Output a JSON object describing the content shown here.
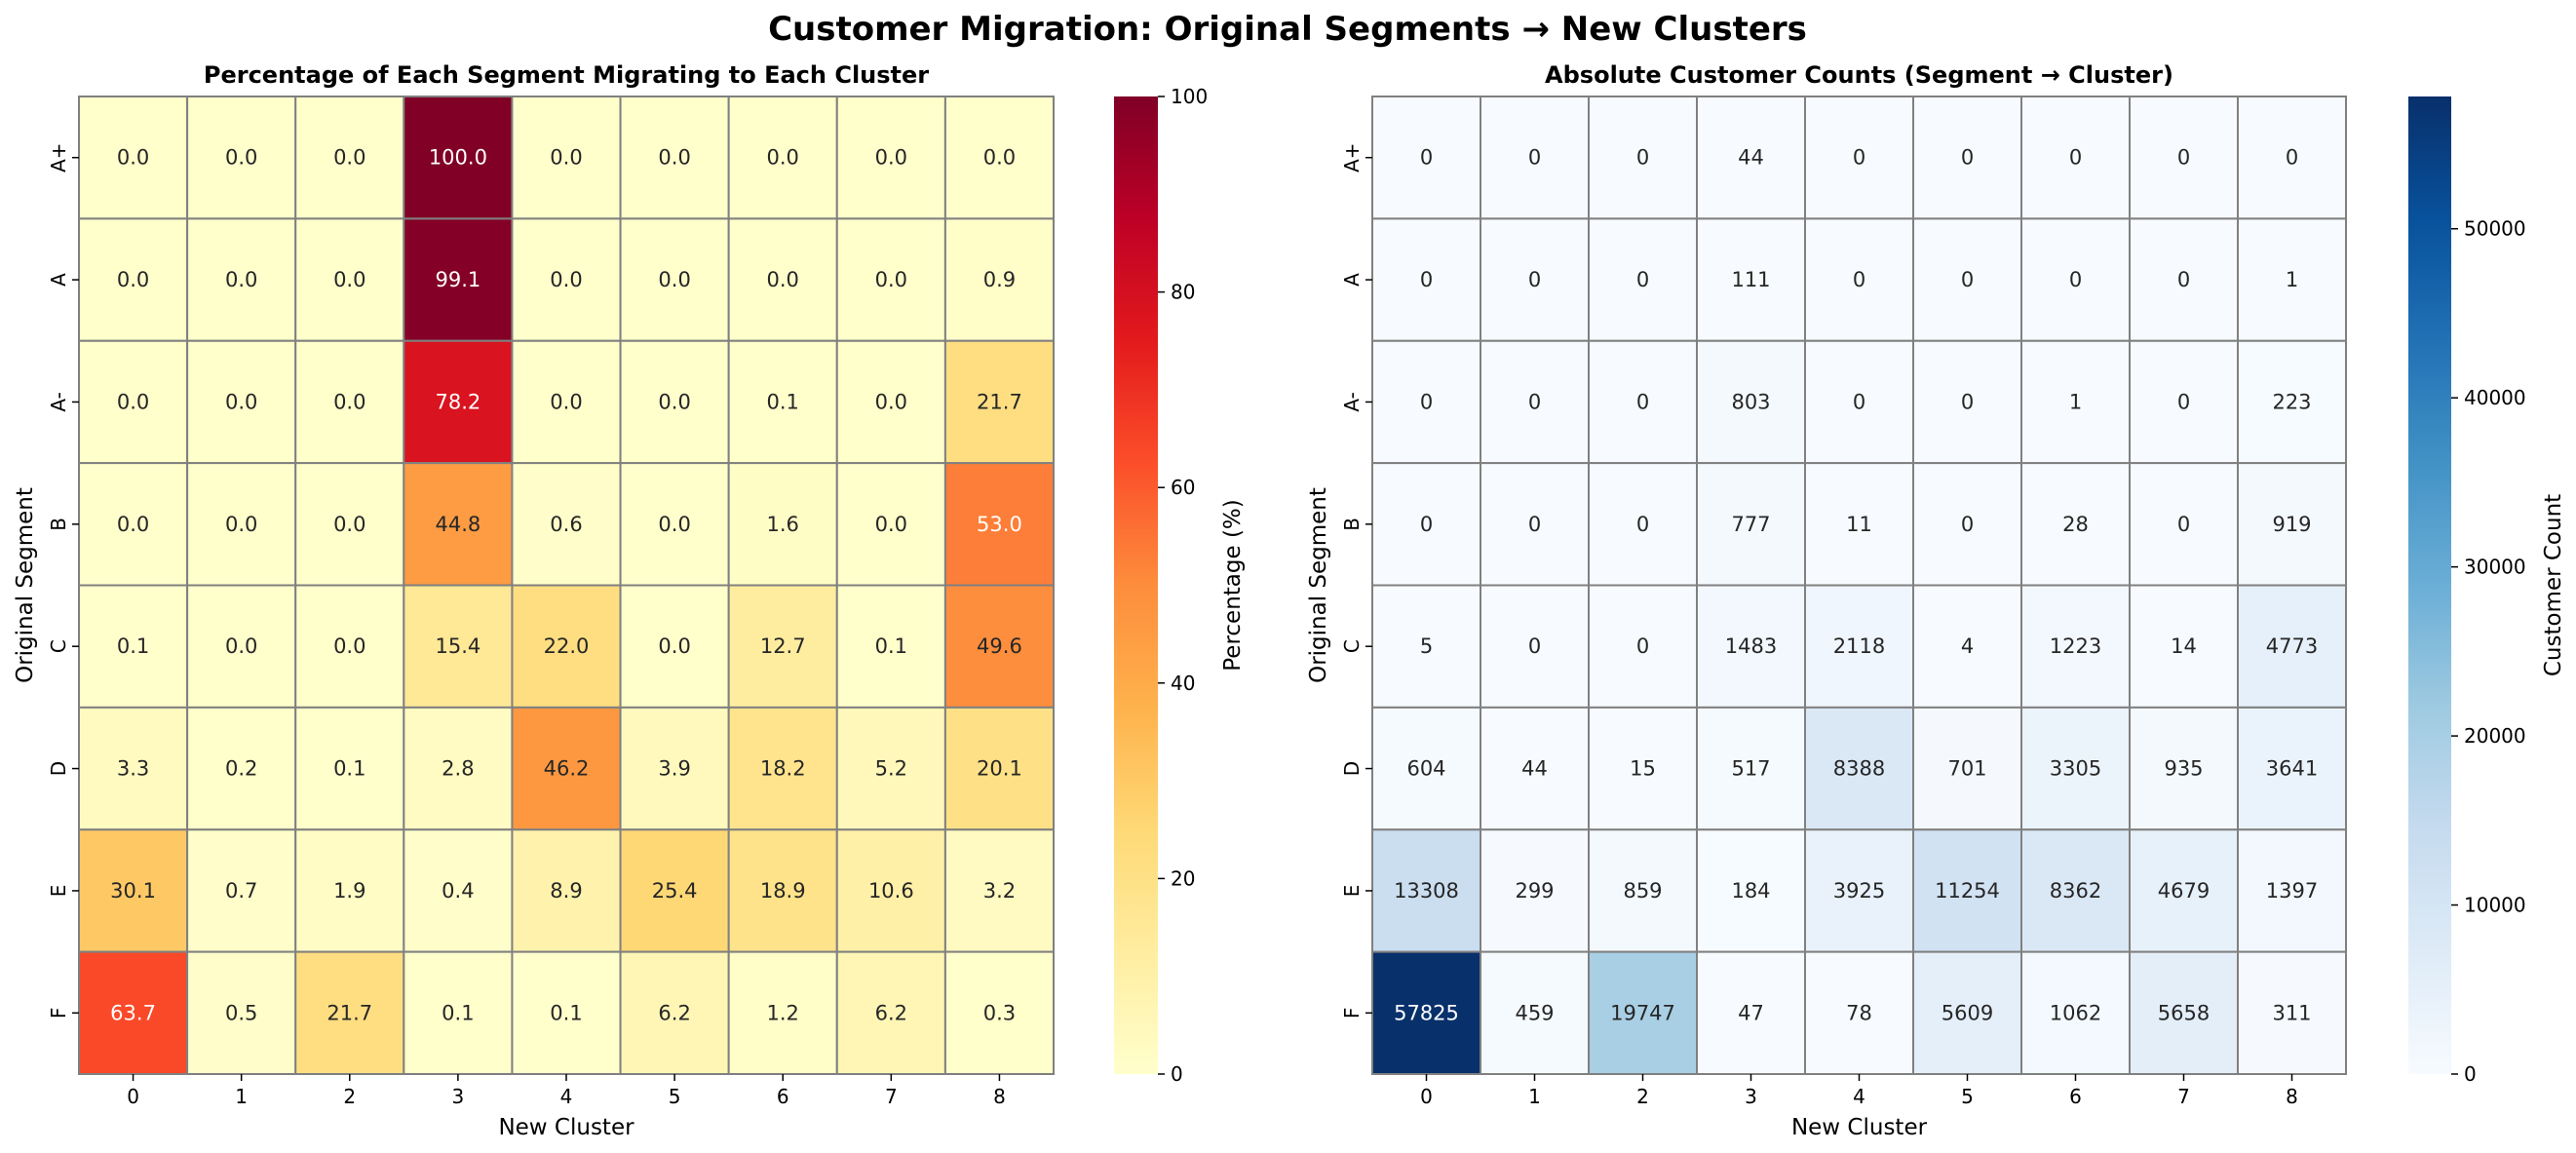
{
  "suptitle": "Customer Migration: Original Segments → New Clusters",
  "chart_data": [
    {
      "type": "heatmap",
      "title": "Percentage of Each Segment Migrating to Each Cluster",
      "xlabel": "New Cluster",
      "ylabel": "Original Segment",
      "x": [
        "0",
        "1",
        "2",
        "3",
        "4",
        "5",
        "6",
        "7",
        "8"
      ],
      "y": [
        "A+",
        "A",
        "A-",
        "B",
        "C",
        "D",
        "E",
        "F"
      ],
      "values": [
        [
          0.0,
          0.0,
          0.0,
          100.0,
          0.0,
          0.0,
          0.0,
          0.0,
          0.0
        ],
        [
          0.0,
          0.0,
          0.0,
          99.1,
          0.0,
          0.0,
          0.0,
          0.0,
          0.9
        ],
        [
          0.0,
          0.0,
          0.0,
          78.2,
          0.0,
          0.0,
          0.1,
          0.0,
          21.7
        ],
        [
          0.0,
          0.0,
          0.0,
          44.8,
          0.6,
          0.0,
          1.6,
          0.0,
          53.0
        ],
        [
          0.1,
          0.0,
          0.0,
          15.4,
          22.0,
          0.0,
          12.7,
          0.1,
          49.6
        ],
        [
          3.3,
          0.2,
          0.1,
          2.8,
          46.2,
          3.9,
          18.2,
          5.2,
          20.1
        ],
        [
          30.1,
          0.7,
          1.9,
          0.4,
          8.9,
          25.4,
          18.9,
          10.6,
          3.2
        ],
        [
          63.7,
          0.5,
          21.7,
          0.1,
          0.1,
          6.2,
          1.2,
          6.2,
          0.3
        ]
      ],
      "decimals": 1,
      "colormap": "YlOrRd",
      "vmin": 0,
      "vmax": 100,
      "colorbar_label": "Percentage (%)",
      "colorbar_ticks": [
        0,
        20,
        40,
        60,
        80,
        100
      ],
      "cell_border_color": "#808080"
    },
    {
      "type": "heatmap",
      "title": "Absolute Customer Counts (Segment → Cluster)",
      "xlabel": "New Cluster",
      "ylabel": "Original Segment",
      "x": [
        "0",
        "1",
        "2",
        "3",
        "4",
        "5",
        "6",
        "7",
        "8"
      ],
      "y": [
        "A+",
        "A",
        "A-",
        "B",
        "C",
        "D",
        "E",
        "F"
      ],
      "values": [
        [
          0,
          0,
          0,
          44,
          0,
          0,
          0,
          0,
          0
        ],
        [
          0,
          0,
          0,
          111,
          0,
          0,
          0,
          0,
          1
        ],
        [
          0,
          0,
          0,
          803,
          0,
          0,
          1,
          0,
          223
        ],
        [
          0,
          0,
          0,
          777,
          11,
          0,
          28,
          0,
          919
        ],
        [
          5,
          0,
          0,
          1483,
          2118,
          4,
          1223,
          14,
          4773
        ],
        [
          604,
          44,
          15,
          517,
          8388,
          701,
          3305,
          935,
          3641
        ],
        [
          13308,
          299,
          859,
          184,
          3925,
          11254,
          8362,
          4679,
          1397
        ],
        [
          57825,
          459,
          19747,
          47,
          78,
          5609,
          1062,
          5658,
          311
        ]
      ],
      "decimals": 0,
      "colormap": "Blues",
      "vmin": 0,
      "vmax": 57825,
      "colorbar_label": "Customer Count",
      "colorbar_ticks": [
        0,
        10000,
        20000,
        30000,
        40000,
        50000
      ],
      "cell_border_color": "#808080"
    }
  ]
}
